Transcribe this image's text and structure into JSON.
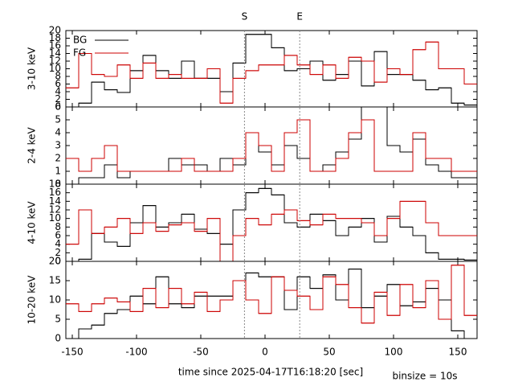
{
  "chart_data": [
    {
      "type": "histogram",
      "ylabel": "3-10 keV",
      "xlim": [
        -155,
        165
      ],
      "xticks": [
        -150,
        -100,
        -50,
        0,
        50,
        100,
        150
      ],
      "ylim": [
        0,
        20
      ],
      "yticks": [
        0,
        2,
        4,
        6,
        8,
        10,
        12,
        14,
        16,
        18,
        20
      ],
      "legend": "upper left",
      "markers": [
        {
          "label": "S",
          "x": -16
        },
        {
          "label": "E",
          "x": 27
        }
      ],
      "bins": [
        -155,
        -145,
        -135,
        -125,
        -115,
        -105,
        -95,
        -85,
        -75,
        -65,
        -55,
        -45,
        -35,
        -25,
        -15,
        -5,
        5,
        15,
        25,
        35,
        45,
        55,
        65,
        75,
        85,
        95,
        105,
        115,
        125,
        135,
        145,
        155,
        165
      ],
      "series": [
        {
          "name": "BG",
          "color": "#000000",
          "values": [
            0,
            1,
            6.5,
            4.5,
            3.8,
            9.5,
            13.5,
            9.5,
            7.5,
            12,
            7.5,
            7.5,
            4,
            11.5,
            19,
            19,
            15.5,
            9.5,
            10,
            12,
            7,
            8.5,
            12,
            5.5,
            14.5,
            8.5,
            8.5,
            7,
            4.5,
            5,
            1,
            0.5
          ]
        },
        {
          "name": "FG",
          "color": "#cc0000",
          "values": [
            5,
            14,
            8.5,
            8,
            11,
            7.5,
            11.5,
            7.5,
            8.5,
            7.5,
            7.5,
            10,
            1,
            7.5,
            9.5,
            11,
            11,
            13.5,
            11,
            8.5,
            11,
            7.5,
            13,
            12,
            6.5,
            10,
            8.5,
            15,
            17,
            10,
            10,
            6
          ]
        }
      ]
    },
    {
      "type": "histogram",
      "ylabel": "2-4 keV",
      "xlim": [
        -155,
        165
      ],
      "xticks": [
        -150,
        -100,
        -50,
        0,
        50,
        100,
        150
      ],
      "ylim": [
        0,
        6
      ],
      "yticks": [
        0,
        1,
        2,
        3,
        4,
        5,
        6
      ],
      "bins": [
        -155,
        -145,
        -135,
        -125,
        -115,
        -105,
        -95,
        -85,
        -75,
        -65,
        -55,
        -45,
        -35,
        -25,
        -15,
        -5,
        5,
        15,
        25,
        35,
        45,
        55,
        65,
        75,
        85,
        95,
        105,
        115,
        125,
        135,
        145,
        155,
        165
      ],
      "series": [
        {
          "name": "BG",
          "color": "#000000",
          "values": [
            0,
            0.5,
            0.5,
            1.5,
            0.5,
            1,
            1,
            1,
            2,
            1.5,
            1.5,
            1,
            2,
            1.5,
            4,
            2.5,
            1.5,
            3,
            2,
            1,
            1.5,
            2.5,
            3.5,
            6,
            6,
            3,
            2.5,
            3.5,
            1.5,
            1,
            0.5,
            0.5
          ]
        },
        {
          "name": "FG",
          "color": "#cc0000",
          "values": [
            2,
            1,
            2,
            3,
            1,
            1,
            1,
            1,
            1,
            2,
            1,
            1,
            1,
            2,
            4,
            3,
            1,
            4,
            5,
            1,
            1,
            2,
            4,
            5,
            1,
            1,
            1,
            4,
            2,
            2,
            1,
            1
          ]
        }
      ]
    },
    {
      "type": "histogram",
      "ylabel": "4-10 keV",
      "xlim": [
        -155,
        165
      ],
      "xticks": [
        -150,
        -100,
        -50,
        0,
        50,
        100,
        150
      ],
      "ylim": [
        0,
        18
      ],
      "yticks": [
        0,
        2,
        4,
        6,
        8,
        10,
        12,
        14,
        16,
        18
      ],
      "bins": [
        -155,
        -145,
        -135,
        -125,
        -115,
        -105,
        -95,
        -85,
        -75,
        -65,
        -55,
        -45,
        -35,
        -25,
        -15,
        -5,
        5,
        15,
        25,
        35,
        45,
        55,
        65,
        75,
        85,
        95,
        105,
        115,
        125,
        135,
        145,
        155,
        165
      ],
      "series": [
        {
          "name": "BG",
          "color": "#000000",
          "values": [
            0,
            0.5,
            6.5,
            4.5,
            3.5,
            9,
            13,
            8,
            9,
            11,
            7.5,
            6.5,
            4,
            12,
            16,
            17,
            15.5,
            9,
            8,
            11,
            9.5,
            6,
            8,
            10,
            4.5,
            10.5,
            8,
            6,
            2,
            0.5,
            0.5,
            0.3
          ]
        },
        {
          "name": "FG",
          "color": "#cc0000",
          "values": [
            4,
            12,
            6.5,
            8,
            10,
            6.5,
            9,
            7,
            8.5,
            9,
            7,
            10,
            0,
            6,
            10,
            8.5,
            11,
            12,
            9.5,
            8.5,
            11,
            10,
            10,
            9,
            6,
            10,
            14,
            14,
            9,
            6,
            6,
            6
          ]
        }
      ]
    },
    {
      "type": "histogram",
      "ylabel": "10-20 keV",
      "xlim": [
        -155,
        165
      ],
      "xticks": [
        -150,
        -100,
        -50,
        0,
        50,
        100,
        150
      ],
      "ylim": [
        0,
        20
      ],
      "yticks": [
        0,
        5,
        10,
        15,
        20
      ],
      "xlabel": "time since 2025-04-17T16:18:20 [sec]",
      "note": "binsize = 10s",
      "bins": [
        -155,
        -145,
        -135,
        -125,
        -115,
        -105,
        -95,
        -85,
        -75,
        -65,
        -55,
        -45,
        -35,
        -25,
        -15,
        -5,
        5,
        15,
        25,
        35,
        45,
        55,
        65,
        75,
        85,
        95,
        105,
        115,
        125,
        135,
        145,
        155,
        165
      ],
      "series": [
        {
          "name": "BG",
          "color": "#000000",
          "values": [
            0,
            2.5,
            3.5,
            6.5,
            7.5,
            11,
            9,
            16,
            9,
            8,
            11,
            11,
            11,
            15,
            17,
            16,
            16,
            7.5,
            16,
            13,
            16.5,
            10,
            18,
            8,
            11,
            14,
            8.5,
            9.5,
            13,
            10,
            2,
            0
          ]
        },
        {
          "name": "FG",
          "color": "#cc0000",
          "values": [
            9,
            7,
            9,
            10.5,
            9.5,
            7,
            13,
            8,
            13,
            9,
            12,
            7,
            10,
            15,
            10,
            6.5,
            16,
            12.5,
            11,
            7.5,
            16,
            14,
            8,
            4,
            12,
            6,
            14,
            8,
            15,
            5,
            19,
            6
          ]
        }
      ]
    }
  ]
}
